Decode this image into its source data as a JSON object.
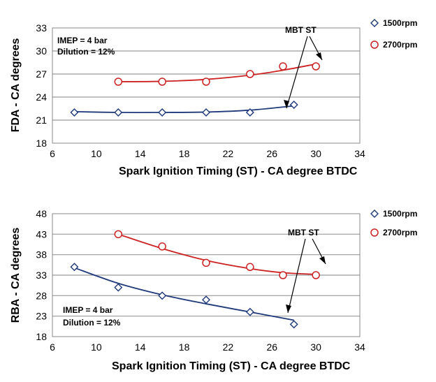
{
  "chart_data": [
    {
      "type": "scatter",
      "title": "",
      "xlabel": "Spark Ignition Timing (ST)  -  CA degree BTDC",
      "ylabel": "FDA  -  CA degrees",
      "xlim": [
        6,
        34
      ],
      "ylim": [
        18,
        33
      ],
      "xticks": [
        6,
        10,
        14,
        18,
        22,
        26,
        30,
        34
      ],
      "yticks": [
        18,
        21,
        24,
        27,
        30,
        33
      ],
      "grid": true,
      "legend_position": "right",
      "annotations": {
        "conditions": [
          "IMEP = 4 bar",
          "Dilution = 12%"
        ],
        "mbt": "MBT ST"
      },
      "series": [
        {
          "name": "1500rpm",
          "color": "#1f3a7a",
          "marker": "diamond",
          "points": [
            [
              8,
              22
            ],
            [
              12,
              22
            ],
            [
              16,
              22
            ],
            [
              20,
              22
            ],
            [
              24,
              22
            ],
            [
              28,
              23
            ]
          ],
          "trend": [
            [
              8,
              22.1
            ],
            [
              12,
              22.0
            ],
            [
              16,
              22.0
            ],
            [
              20,
              22.05
            ],
            [
              24,
              22.3
            ],
            [
              28,
              22.85
            ]
          ]
        },
        {
          "name": "2700rpm",
          "color": "#cc2222",
          "marker": "circle",
          "points": [
            [
              12,
              26
            ],
            [
              16,
              26
            ],
            [
              20,
              26
            ],
            [
              24,
              27
            ],
            [
              27,
              28
            ],
            [
              30,
              28
            ]
          ],
          "trend": [
            [
              12,
              26.0
            ],
            [
              16,
              26.05
            ],
            [
              20,
              26.3
            ],
            [
              24,
              26.85
            ],
            [
              27,
              27.5
            ],
            [
              30,
              28.3
            ]
          ]
        }
      ]
    },
    {
      "type": "scatter",
      "title": "",
      "xlabel": "Spark Ignition Timing (ST)  -  CA degree BTDC",
      "ylabel": "RBA  -  CA degrees",
      "xlim": [
        6,
        34
      ],
      "ylim": [
        18,
        48
      ],
      "xticks": [
        6,
        10,
        14,
        18,
        22,
        26,
        30,
        34
      ],
      "yticks": [
        18,
        23,
        28,
        33,
        38,
        43,
        48
      ],
      "grid": true,
      "legend_position": "right",
      "annotations": {
        "conditions": [
          "IMEP = 4 bar",
          "Dilution = 12%"
        ],
        "mbt": "MBT ST"
      },
      "series": [
        {
          "name": "1500rpm",
          "color": "#1f3a7a",
          "marker": "diamond",
          "points": [
            [
              8,
              35
            ],
            [
              12,
              30
            ],
            [
              16,
              28
            ],
            [
              20,
              27
            ],
            [
              24,
              24
            ],
            [
              28,
              21
            ]
          ],
          "trend": [
            [
              8,
              34.8
            ],
            [
              12,
              31.0
            ],
            [
              16,
              28.2
            ],
            [
              20,
              26.0
            ],
            [
              24,
              24.0
            ],
            [
              28,
              22.0
            ]
          ]
        },
        {
          "name": "2700rpm",
          "color": "#cc2222",
          "marker": "circle",
          "points": [
            [
              12,
              43
            ],
            [
              16,
              40
            ],
            [
              20,
              36
            ],
            [
              24,
              35
            ],
            [
              27,
              33
            ],
            [
              30,
              33
            ]
          ],
          "trend": [
            [
              12,
              43.0
            ],
            [
              16,
              39.5
            ],
            [
              20,
              36.6
            ],
            [
              24,
              34.6
            ],
            [
              27,
              33.6
            ],
            [
              30,
              33.2
            ]
          ]
        }
      ]
    }
  ]
}
